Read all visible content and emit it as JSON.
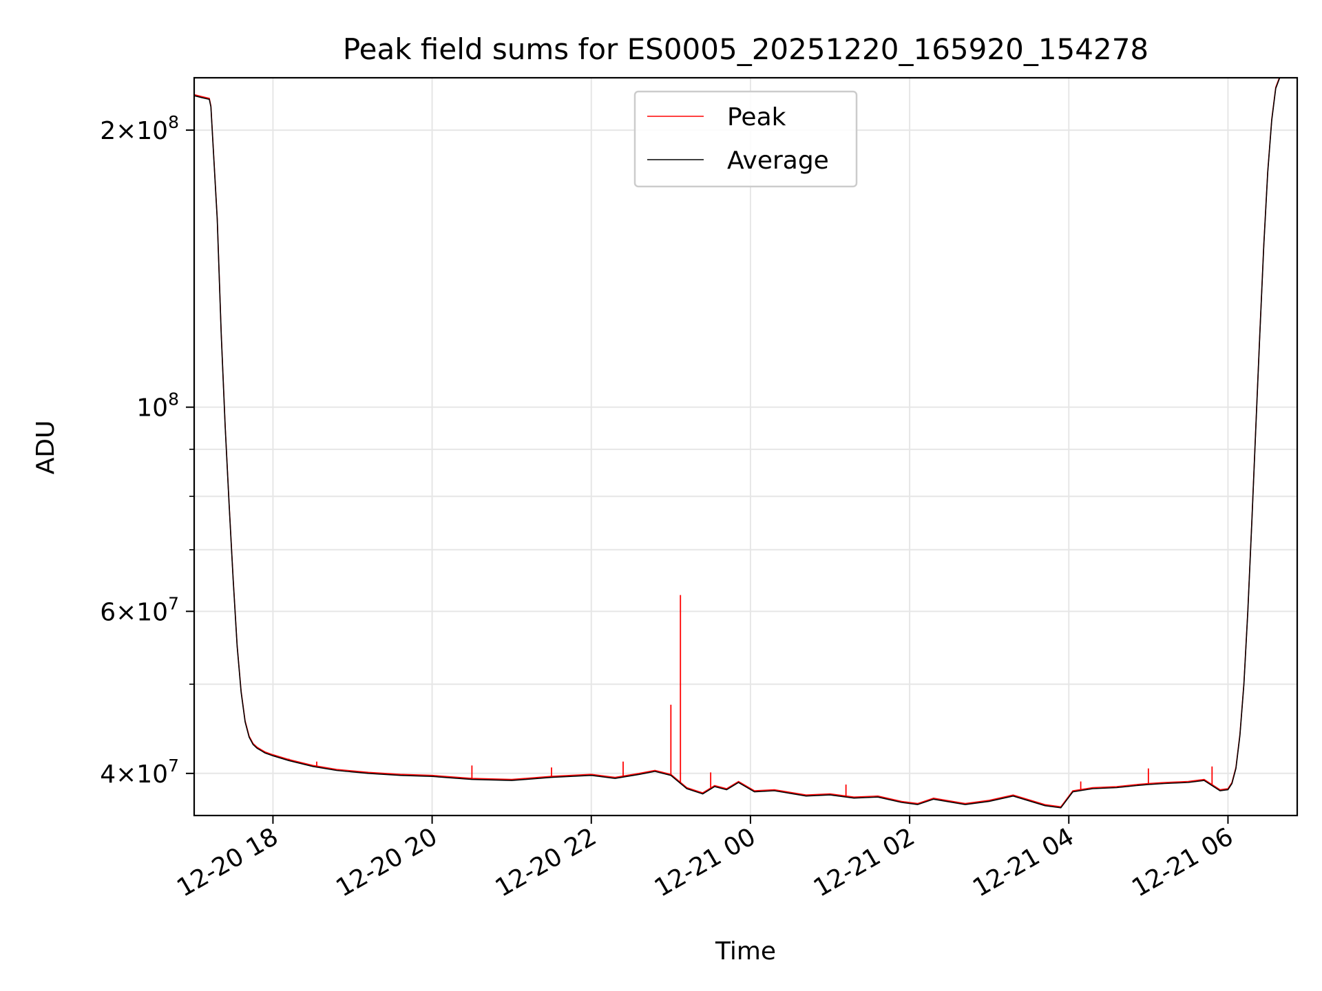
{
  "chart_data": {
    "type": "line",
    "title": "Peak field sums for ES0005_20251220_165920_154278",
    "xlabel": "Time",
    "ylabel": "ADU",
    "yscale": "log",
    "xlim_hours": [
      -0.99,
      12.87
    ],
    "ylim": [
      36000000,
      228000000
    ],
    "grid": true,
    "legend_position": "upper center",
    "x_tick_hours": [
      0,
      2,
      4,
      6,
      8,
      10,
      12
    ],
    "x_tick_labels": [
      "12-20 18",
      "12-20 20",
      "12-20 22",
      "12-21 00",
      "12-21 02",
      "12-21 04",
      "12-21 06"
    ],
    "y_major_ticks": [
      {
        "value": 40000000,
        "mantissa": "4",
        "exponent": "7"
      },
      {
        "value": 60000000,
        "mantissa": "6",
        "exponent": "7"
      },
      {
        "value": 100000000,
        "mantissa": "",
        "exponent": "8"
      },
      {
        "value": 200000000,
        "mantissa": "2",
        "exponent": "8"
      }
    ],
    "y_minor_ticks": [
      50000000,
      70000000,
      80000000,
      90000000
    ],
    "series": [
      {
        "name": "Peak",
        "color": "#ff0000",
        "spikes": [
          {
            "hour": 5.0,
            "value": 47500000
          },
          {
            "hour": 5.12,
            "value": 62500000
          },
          {
            "hour": 0.2,
            "value": 41500000
          },
          {
            "hour": 0.55,
            "value": 41200000
          },
          {
            "hour": 2.5,
            "value": 40800000
          },
          {
            "hour": 3.5,
            "value": 40600000
          },
          {
            "hour": 4.4,
            "value": 41200000
          },
          {
            "hour": 5.5,
            "value": 40100000
          },
          {
            "hour": 7.2,
            "value": 38900000
          },
          {
            "hour": 10.15,
            "value": 39200000
          },
          {
            "hour": 11.0,
            "value": 40500000
          },
          {
            "hour": 11.8,
            "value": 40700000
          }
        ]
      },
      {
        "name": "Average",
        "color": "#000000",
        "x_hours": [
          -0.99,
          -0.9,
          -0.8,
          -0.78,
          -0.7,
          -0.65,
          -0.6,
          -0.55,
          -0.5,
          -0.45,
          -0.4,
          -0.35,
          -0.3,
          -0.25,
          -0.2,
          -0.1,
          0,
          0.2,
          0.5,
          0.8,
          1.2,
          1.6,
          2.0,
          2.5,
          3.0,
          3.5,
          4.0,
          4.3,
          4.6,
          4.8,
          5.0,
          5.2,
          5.4,
          5.55,
          5.7,
          5.85,
          6.05,
          6.3,
          6.7,
          7.0,
          7.3,
          7.6,
          7.9,
          8.1,
          8.3,
          8.7,
          9.0,
          9.3,
          9.7,
          9.9,
          10.05,
          10.3,
          10.6,
          10.85,
          11.0,
          11.2,
          11.5,
          11.7,
          11.9,
          12.0,
          12.05,
          12.1,
          12.15,
          12.2,
          12.25,
          12.3,
          12.35,
          12.4,
          12.45,
          12.5,
          12.55,
          12.6,
          12.65,
          12.68
        ],
        "values": [
          218000000,
          217000000,
          216000000,
          212000000,
          160000000,
          120000000,
          95000000,
          78000000,
          65000000,
          55000000,
          49000000,
          45500000,
          43800000,
          43000000,
          42600000,
          42100000,
          41800000,
          41300000,
          40700000,
          40300000,
          40000000,
          39800000,
          39700000,
          39400000,
          39300000,
          39600000,
          39800000,
          39500000,
          39900000,
          40200000,
          39800000,
          38500000,
          38000000,
          38700000,
          38400000,
          39100000,
          38200000,
          38300000,
          37800000,
          37900000,
          37600000,
          37700000,
          37200000,
          37000000,
          37500000,
          37000000,
          37300000,
          37800000,
          36900000,
          36700000,
          38200000,
          38500000,
          38600000,
          38800000,
          38900000,
          39000000,
          39100000,
          39300000,
          38300000,
          38400000,
          39000000,
          40500000,
          44000000,
          50000000,
          60000000,
          75000000,
          95000000,
          120000000,
          150000000,
          180000000,
          205000000,
          222000000,
          228000000,
          228000000
        ]
      }
    ]
  }
}
